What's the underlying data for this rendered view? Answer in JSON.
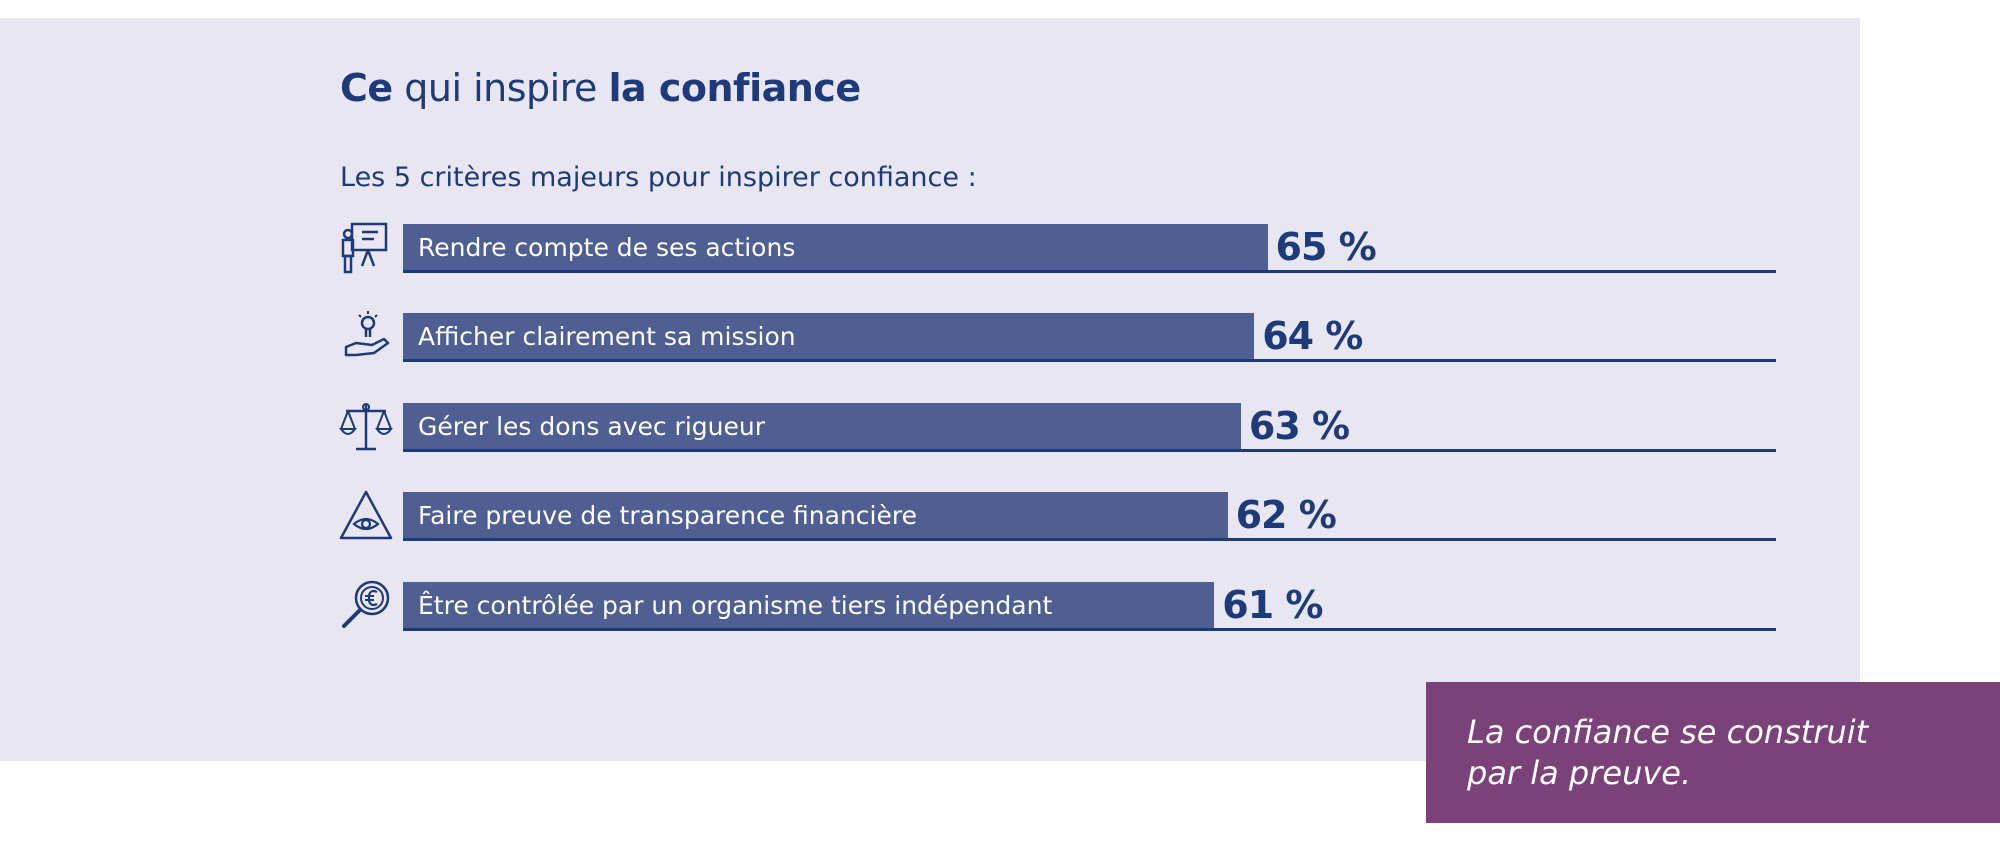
{
  "title": {
    "part1": "Ce",
    "part2": " qui inspire ",
    "part3": "la confiance"
  },
  "subtitle": "Les 5 critères majeurs pour inspirer confiance :",
  "colors": {
    "background": "#e8e6f1",
    "bar": "#4f5f93",
    "text": "#1d3a7a",
    "quote_bg": "#7b4179"
  },
  "chart_data": {
    "type": "bar",
    "orientation": "horizontal",
    "categories": [
      "Rendre compte de ses actions",
      "Afficher clairement sa mission",
      "Gérer les dons avec rigueur",
      "Faire preuve de transparence financière",
      "Être contrôlée par un organisme tiers indépendant"
    ],
    "values": [
      65,
      64,
      63,
      62,
      61
    ],
    "value_labels": [
      "65 %",
      "64 %",
      "63 %",
      "62 %",
      "61 %"
    ],
    "icons": [
      "presentation-icon",
      "hand-lightbulb-icon",
      "scales-icon",
      "eye-triangle-icon",
      "magnifier-euro-icon"
    ]
  },
  "quote": {
    "line1": "La confiance se construit",
    "line2": "par la preuve."
  }
}
